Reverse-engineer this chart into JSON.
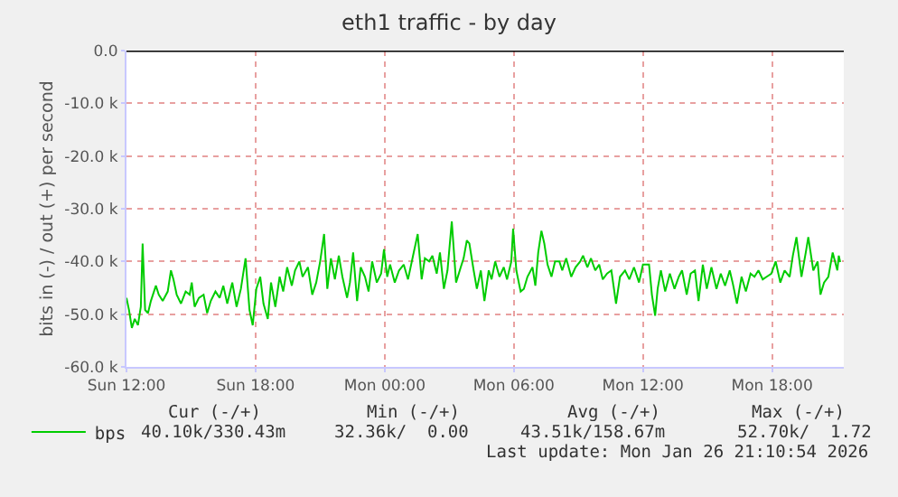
{
  "chart_data": {
    "type": "line",
    "title": "eth1 traffic - by day",
    "ylabel": "bits in (-) / out (+) per second",
    "x": [
      "2026-01-25T12:00",
      "2026-01-25T12:07",
      "2026-01-25T12:15",
      "2026-01-25T12:23",
      "2026-01-25T12:32",
      "2026-01-25T12:40",
      "2026-01-25T12:45",
      "2026-01-25T12:52",
      "2026-01-25T13:00",
      "2026-01-25T13:08",
      "2026-01-25T13:22",
      "2026-01-25T13:30",
      "2026-01-25T13:41",
      "2026-01-25T13:55",
      "2026-01-25T14:04",
      "2026-01-25T14:11",
      "2026-01-25T14:20",
      "2026-01-25T14:32",
      "2026-01-25T14:45",
      "2026-01-25T14:56",
      "2026-01-25T15:02",
      "2026-01-25T15:10",
      "2026-01-25T15:22",
      "2026-01-25T15:35",
      "2026-01-25T15:45",
      "2026-01-25T15:55",
      "2026-01-25T16:08",
      "2026-01-25T16:20",
      "2026-01-25T16:30",
      "2026-01-25T16:41",
      "2026-01-25T16:55",
      "2026-01-25T17:07",
      "2026-01-25T17:19",
      "2026-01-25T17:32",
      "2026-01-25T17:43",
      "2026-01-25T17:52",
      "2026-01-25T18:02",
      "2026-01-25T18:13",
      "2026-01-25T18:22",
      "2026-01-25T18:34",
      "2026-01-25T18:43",
      "2026-01-25T18:55",
      "2026-01-25T19:07",
      "2026-01-25T19:17",
      "2026-01-25T19:28",
      "2026-01-25T19:41",
      "2026-01-25T19:50",
      "2026-01-25T20:02",
      "2026-01-25T20:11",
      "2026-01-25T20:26",
      "2026-01-25T20:38",
      "2026-01-25T20:49",
      "2026-01-25T21:00",
      "2026-01-25T21:11",
      "2026-01-25T21:20",
      "2026-01-25T21:30",
      "2026-01-25T21:41",
      "2026-01-25T21:52",
      "2026-01-25T22:02",
      "2026-01-25T22:15",
      "2026-01-25T22:23",
      "2026-01-25T22:32",
      "2026-01-25T22:43",
      "2026-01-25T22:53",
      "2026-01-25T23:05",
      "2026-01-25T23:15",
      "2026-01-25T23:25",
      "2026-01-25T23:38",
      "2026-01-25T23:50",
      "2026-01-25T23:58",
      "2026-01-26T00:07",
      "2026-01-26T00:15",
      "2026-01-26T00:28",
      "2026-01-26T00:40",
      "2026-01-26T00:53",
      "2026-01-26T01:05",
      "2026-01-26T01:19",
      "2026-01-26T01:32",
      "2026-01-26T01:43",
      "2026-01-26T01:52",
      "2026-01-26T02:04",
      "2026-01-26T02:13",
      "2026-01-26T02:25",
      "2026-01-26T02:34",
      "2026-01-26T02:45",
      "2026-01-26T02:55",
      "2026-01-26T03:07",
      "2026-01-26T03:19",
      "2026-01-26T03:32",
      "2026-01-26T03:40",
      "2026-01-26T03:49",
      "2026-01-26T03:56",
      "2026-01-26T04:08",
      "2026-01-26T04:17",
      "2026-01-26T04:28",
      "2026-01-26T04:38",
      "2026-01-26T04:50",
      "2026-01-26T04:58",
      "2026-01-26T05:08",
      "2026-01-26T05:20",
      "2026-01-26T05:32",
      "2026-01-26T05:41",
      "2026-01-26T05:53",
      "2026-01-26T05:58",
      "2026-01-26T06:07",
      "2026-01-26T06:19",
      "2026-01-26T06:28",
      "2026-01-26T06:38",
      "2026-01-26T06:52",
      "2026-01-26T07:00",
      "2026-01-26T07:08",
      "2026-01-26T07:17",
      "2026-01-26T07:25",
      "2026-01-26T07:34",
      "2026-01-26T07:45",
      "2026-01-26T07:55",
      "2026-01-26T08:07",
      "2026-01-26T08:15",
      "2026-01-26T08:26",
      "2026-01-26T08:40",
      "2026-01-26T08:52",
      "2026-01-26T09:05",
      "2026-01-26T09:13",
      "2026-01-26T09:25",
      "2026-01-26T09:35",
      "2026-01-26T09:47",
      "2026-01-26T09:58",
      "2026-01-26T10:08",
      "2026-01-26T10:20",
      "2026-01-26T10:32",
      "2026-01-26T10:45",
      "2026-01-26T10:56",
      "2026-01-26T11:10",
      "2026-01-26T11:22",
      "2026-01-26T11:35",
      "2026-01-26T11:49",
      "2026-01-26T12:00",
      "2026-01-26T12:17",
      "2026-01-26T12:25",
      "2026-01-26T12:34",
      "2026-01-26T12:41",
      "2026-01-26T12:50",
      "2026-01-26T13:02",
      "2026-01-26T13:15",
      "2026-01-26T13:28",
      "2026-01-26T13:40",
      "2026-01-26T13:49",
      "2026-01-26T14:02",
      "2026-01-26T14:13",
      "2026-01-26T14:25",
      "2026-01-26T14:35",
      "2026-01-26T14:47",
      "2026-01-26T14:58",
      "2026-01-26T15:11",
      "2026-01-26T15:25",
      "2026-01-26T15:37",
      "2026-01-26T15:49",
      "2026-01-26T16:02",
      "2026-01-26T16:10",
      "2026-01-26T16:22",
      "2026-01-26T16:35",
      "2026-01-26T16:47",
      "2026-01-26T17:00",
      "2026-01-26T17:11",
      "2026-01-26T17:22",
      "2026-01-26T17:34",
      "2026-01-26T17:45",
      "2026-01-26T17:58",
      "2026-01-26T18:10",
      "2026-01-26T18:23",
      "2026-01-26T18:35",
      "2026-01-26T18:49",
      "2026-01-26T18:58",
      "2026-01-26T19:08",
      "2026-01-26T19:22",
      "2026-01-26T19:34",
      "2026-01-26T19:41",
      "2026-01-26T19:55",
      "2026-01-26T20:07",
      "2026-01-26T20:15",
      "2026-01-26T20:25",
      "2026-01-26T20:37",
      "2026-01-26T20:49",
      "2026-01-26T21:02",
      "2026-01-26T21:06",
      "2026-01-26T21:10"
    ],
    "series": [
      {
        "name": "bps",
        "color": "#00cc00",
        "values": [
          -46900,
          -49200,
          -52600,
          -50900,
          -52100,
          -48600,
          -36600,
          -49200,
          -49800,
          -47500,
          -44600,
          -46300,
          -47500,
          -45700,
          -41700,
          -43400,
          -46300,
          -48000,
          -45700,
          -46300,
          -44000,
          -48600,
          -46900,
          -46300,
          -49800,
          -47500,
          -45700,
          -46900,
          -44600,
          -48000,
          -44000,
          -48600,
          -45200,
          -39400,
          -49200,
          -52100,
          -45200,
          -42900,
          -48000,
          -50900,
          -44000,
          -48600,
          -42900,
          -45700,
          -41100,
          -44600,
          -41700,
          -40000,
          -42900,
          -41100,
          -46300,
          -44000,
          -40000,
          -34800,
          -45200,
          -39400,
          -43400,
          -38900,
          -42900,
          -46900,
          -44000,
          -38300,
          -47500,
          -41100,
          -42900,
          -45700,
          -40000,
          -44000,
          -42300,
          -37700,
          -42900,
          -40600,
          -44000,
          -41700,
          -40600,
          -43400,
          -38900,
          -34800,
          -43400,
          -39400,
          -40000,
          -38900,
          -42300,
          -38300,
          -45200,
          -41700,
          -32400,
          -44000,
          -41100,
          -39400,
          -36000,
          -36600,
          -41700,
          -45200,
          -41700,
          -47500,
          -41700,
          -43400,
          -40000,
          -42900,
          -41100,
          -43400,
          -40000,
          -33800,
          -41700,
          -45700,
          -45200,
          -42900,
          -41100,
          -44600,
          -38300,
          -34200,
          -36600,
          -40600,
          -42900,
          -40000,
          -40000,
          -41700,
          -39400,
          -42900,
          -41100,
          -40000,
          -38900,
          -41100,
          -39400,
          -41700,
          -40600,
          -43400,
          -42300,
          -41700,
          -48000,
          -42900,
          -41700,
          -43400,
          -41100,
          -44000,
          -40600,
          -40600,
          -46300,
          -50300,
          -45200,
          -41700,
          -45700,
          -42300,
          -45200,
          -42900,
          -41700,
          -46300,
          -42300,
          -41700,
          -47500,
          -40600,
          -45200,
          -41100,
          -45200,
          -42300,
          -44600,
          -41700,
          -44000,
          -48000,
          -42900,
          -45700,
          -42300,
          -42900,
          -41700,
          -43400,
          -42900,
          -42300,
          -40000,
          -44000,
          -41700,
          -42900,
          -38900,
          -35400,
          -42900,
          -38300,
          -35400,
          -41700,
          -40000,
          -46300,
          -44000,
          -42900,
          -38300,
          -41700,
          -38900,
          -40100
        ]
      }
    ],
    "xlim": [
      "2026-01-25T12:00",
      "2026-01-26T21:20"
    ],
    "xticks": [
      {
        "value": "2026-01-25T12:00",
        "label": "Sun 12:00"
      },
      {
        "value": "2026-01-25T18:00",
        "label": "Sun 18:00"
      },
      {
        "value": "2026-01-26T00:00",
        "label": "Mon 00:00"
      },
      {
        "value": "2026-01-26T06:00",
        "label": "Mon 06:00"
      },
      {
        "value": "2026-01-26T12:00",
        "label": "Mon 12:00"
      },
      {
        "value": "2026-01-26T18:00",
        "label": "Mon 18:00"
      }
    ],
    "ylim": [
      -60000,
      0
    ],
    "yticks": [
      {
        "value": -60000,
        "label": "-60.0 k"
      },
      {
        "value": -50000,
        "label": "-50.0 k"
      },
      {
        "value": -40000,
        "label": "-40.0 k"
      },
      {
        "value": -30000,
        "label": "-30.0 k"
      },
      {
        "value": -20000,
        "label": "-20.0 k"
      },
      {
        "value": -10000,
        "label": "-10.0 k"
      },
      {
        "value": 0,
        "label": "0.0"
      }
    ],
    "ref_lines": [
      {
        "axis": "y",
        "value": 0,
        "color": "#000000"
      }
    ],
    "grid": true,
    "legend": "bottom left",
    "marker": "none",
    "line_style": "solid",
    "annotations": [
      "Cur (-/+)",
      "Min (-/+)",
      "Avg (-/+)",
      "Max (-/+)",
      "40.10k/330.43m",
      "32.36k/  0.00",
      "43.51k/158.67m",
      "52.70k/  1.72",
      "Last update: Mon Jan 26 21:10:54 2026"
    ]
  }
}
